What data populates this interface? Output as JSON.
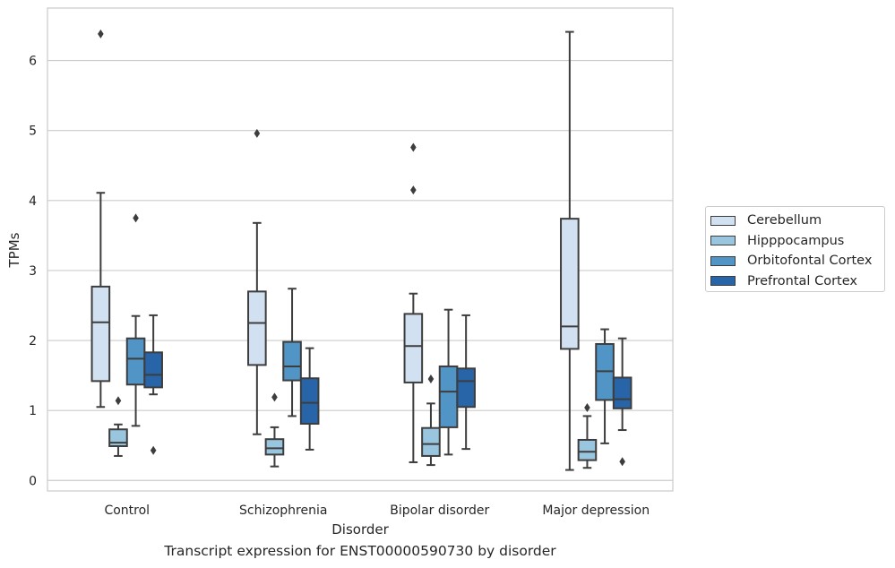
{
  "chart_data": {
    "type": "box",
    "title": "",
    "xlabel": "Disorder",
    "ylabel": "TPMs",
    "caption": "Transcript expression for ENST00000590730 by disorder",
    "ylim": [
      -0.15,
      6.75
    ],
    "yticks": [
      "0",
      "1",
      "2",
      "3",
      "4",
      "5",
      "6"
    ],
    "grid": "horizontal",
    "legend_position": "right",
    "categories": [
      "Control",
      "Schizophrenia",
      "Bipolar disorder",
      "Major depression"
    ],
    "series": [
      {
        "name": "Cerebellum",
        "color": "#d2e1f1",
        "boxes": [
          {
            "whisker_low": 1.05,
            "q1": 1.42,
            "median": 2.26,
            "q3": 2.77,
            "whisker_high": 4.11,
            "outliers": [
              6.38
            ]
          },
          {
            "whisker_low": 0.66,
            "q1": 1.65,
            "median": 2.25,
            "q3": 2.7,
            "whisker_high": 3.68,
            "outliers": [
              4.96
            ]
          },
          {
            "whisker_low": 0.26,
            "q1": 1.4,
            "median": 1.92,
            "q3": 2.38,
            "whisker_high": 2.67,
            "outliers": [
              4.15,
              4.76
            ]
          },
          {
            "whisker_low": 0.15,
            "q1": 1.88,
            "median": 2.2,
            "q3": 3.74,
            "whisker_high": 6.41,
            "outliers": []
          }
        ]
      },
      {
        "name": "Hipppocampus",
        "color": "#9ac5de",
        "boxes": [
          {
            "whisker_low": 0.35,
            "q1": 0.49,
            "median": 0.54,
            "q3": 0.73,
            "whisker_high": 0.8,
            "outliers": [
              1.14
            ]
          },
          {
            "whisker_low": 0.2,
            "q1": 0.37,
            "median": 0.46,
            "q3": 0.59,
            "whisker_high": 0.76,
            "outliers": [
              1.19
            ]
          },
          {
            "whisker_low": 0.22,
            "q1": 0.35,
            "median": 0.52,
            "q3": 0.75,
            "whisker_high": 1.1,
            "outliers": [
              1.45
            ]
          },
          {
            "whisker_low": 0.18,
            "q1": 0.29,
            "median": 0.41,
            "q3": 0.58,
            "whisker_high": 0.92,
            "outliers": [
              1.04
            ]
          }
        ]
      },
      {
        "name": "Orbitofontal Cortex",
        "color": "#5195c6",
        "boxes": [
          {
            "whisker_low": 0.78,
            "q1": 1.37,
            "median": 1.74,
            "q3": 2.03,
            "whisker_high": 2.35,
            "outliers": [
              3.75
            ]
          },
          {
            "whisker_low": 0.92,
            "q1": 1.43,
            "median": 1.63,
            "q3": 1.98,
            "whisker_high": 2.74,
            "outliers": []
          },
          {
            "whisker_low": 0.37,
            "q1": 0.76,
            "median": 1.27,
            "q3": 1.63,
            "whisker_high": 2.44,
            "outliers": []
          },
          {
            "whisker_low": 0.53,
            "q1": 1.15,
            "median": 1.56,
            "q3": 1.95,
            "whisker_high": 2.16,
            "outliers": []
          }
        ]
      },
      {
        "name": "Prefrontal Cortex",
        "color": "#2865a8",
        "boxes": [
          {
            "whisker_low": 1.23,
            "q1": 1.33,
            "median": 1.51,
            "q3": 1.83,
            "whisker_high": 2.36,
            "outliers": [
              0.43
            ]
          },
          {
            "whisker_low": 0.44,
            "q1": 0.81,
            "median": 1.11,
            "q3": 1.46,
            "whisker_high": 1.89,
            "outliers": []
          },
          {
            "whisker_low": 0.45,
            "q1": 1.05,
            "median": 1.42,
            "q3": 1.6,
            "whisker_high": 2.36,
            "outliers": []
          },
          {
            "whisker_low": 0.72,
            "q1": 1.03,
            "median": 1.16,
            "q3": 1.47,
            "whisker_high": 2.03,
            "outliers": [
              0.27
            ]
          }
        ]
      }
    ]
  }
}
